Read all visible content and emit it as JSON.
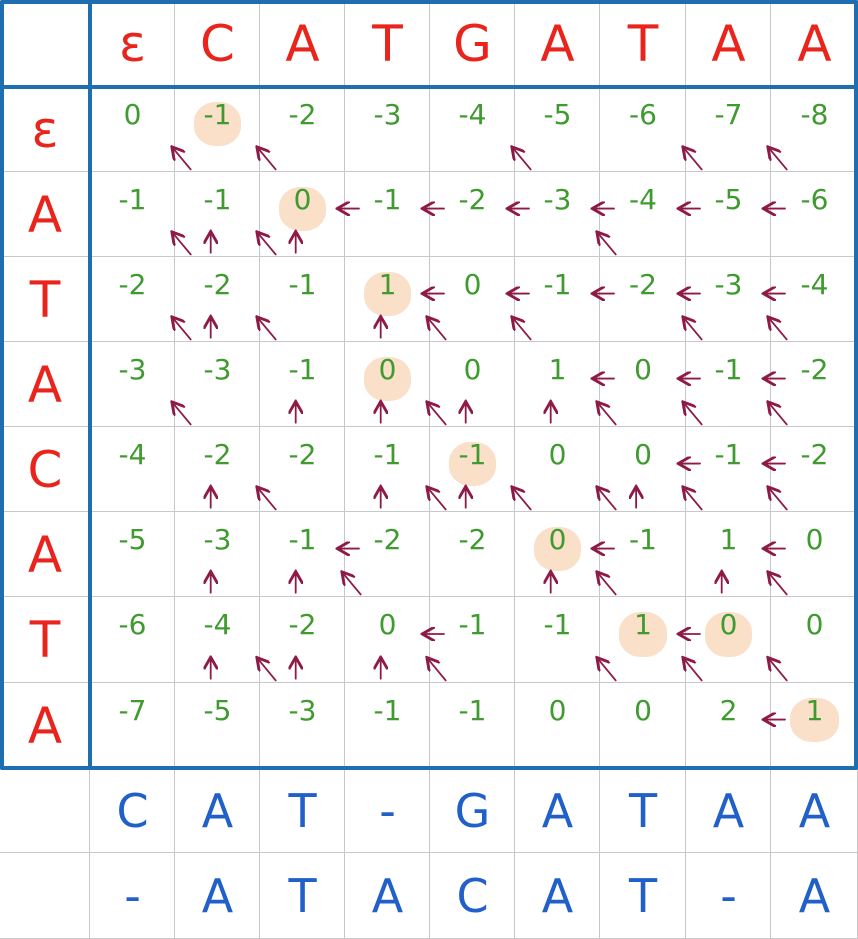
{
  "header_row": [
    "ε",
    "C",
    "A",
    "T",
    "G",
    "A",
    "T",
    "A",
    "A"
  ],
  "header_col": [
    "ε",
    "A",
    "T",
    "A",
    "C",
    "A",
    "T",
    "A"
  ],
  "matrix": [
    [
      "0",
      "-1",
      "-2",
      "-3",
      "-4",
      "-5",
      "-6",
      "-7",
      "-8"
    ],
    [
      "-1",
      "-1",
      "0",
      "-1",
      "-2",
      "-3",
      "-4",
      "-5",
      "-6"
    ],
    [
      "-2",
      "-2",
      "-1",
      "1",
      "0",
      "-1",
      "-2",
      "-3",
      "-4"
    ],
    [
      "-3",
      "-3",
      "-1",
      "0",
      "0",
      "1",
      "0",
      "-1",
      "-2"
    ],
    [
      "-4",
      "-2",
      "-2",
      "-1",
      "-1",
      "0",
      "0",
      "-1",
      "-2"
    ],
    [
      "-5",
      "-3",
      "-1",
      "-2",
      "-2",
      "0",
      "-1",
      "1",
      "0"
    ],
    [
      "-6",
      "-4",
      "-2",
      "0",
      "-1",
      "-1",
      "1",
      "0",
      "0"
    ],
    [
      "-7",
      "-5",
      "-3",
      "-1",
      "-1",
      "0",
      "0",
      "2",
      "1"
    ]
  ],
  "highlighted": [
    [
      0,
      1
    ],
    [
      1,
      2
    ],
    [
      2,
      3
    ],
    [
      3,
      3
    ],
    [
      4,
      4
    ],
    [
      5,
      5
    ],
    [
      6,
      6
    ],
    [
      6,
      7
    ],
    [
      7,
      8
    ]
  ],
  "arrows": [
    [
      0,
      1,
      "d"
    ],
    [
      0,
      2,
      "d"
    ],
    [
      0,
      5,
      "d"
    ],
    [
      0,
      7,
      "d"
    ],
    [
      0,
      8,
      "d"
    ],
    [
      1,
      1,
      "d"
    ],
    [
      1,
      1,
      "u"
    ],
    [
      1,
      2,
      "u"
    ],
    [
      1,
      2,
      "d"
    ],
    [
      1,
      3,
      "l"
    ],
    [
      1,
      4,
      "l"
    ],
    [
      1,
      5,
      "l"
    ],
    [
      1,
      6,
      "l"
    ],
    [
      1,
      6,
      "d"
    ],
    [
      1,
      7,
      "l"
    ],
    [
      1,
      8,
      "l"
    ],
    [
      2,
      1,
      "d"
    ],
    [
      2,
      1,
      "u"
    ],
    [
      2,
      2,
      "d"
    ],
    [
      2,
      3,
      "u"
    ],
    [
      2,
      4,
      "l"
    ],
    [
      2,
      4,
      "d"
    ],
    [
      2,
      5,
      "l"
    ],
    [
      2,
      5,
      "d"
    ],
    [
      2,
      6,
      "l"
    ],
    [
      2,
      7,
      "l"
    ],
    [
      2,
      7,
      "d"
    ],
    [
      2,
      8,
      "l"
    ],
    [
      2,
      8,
      "d"
    ],
    [
      3,
      1,
      "d"
    ],
    [
      3,
      2,
      "u"
    ],
    [
      3,
      3,
      "u"
    ],
    [
      3,
      4,
      "d"
    ],
    [
      3,
      4,
      "u"
    ],
    [
      3,
      5,
      "u"
    ],
    [
      3,
      6,
      "l"
    ],
    [
      3,
      6,
      "d"
    ],
    [
      3,
      7,
      "l"
    ],
    [
      3,
      7,
      "d"
    ],
    [
      3,
      8,
      "l"
    ],
    [
      3,
      8,
      "d"
    ],
    [
      4,
      1,
      "u"
    ],
    [
      4,
      2,
      "d"
    ],
    [
      4,
      3,
      "u"
    ],
    [
      4,
      4,
      "d"
    ],
    [
      4,
      4,
      "u"
    ],
    [
      4,
      5,
      "d"
    ],
    [
      4,
      6,
      "d"
    ],
    [
      4,
      6,
      "u"
    ],
    [
      4,
      7,
      "l"
    ],
    [
      4,
      7,
      "d"
    ],
    [
      4,
      8,
      "l"
    ],
    [
      4,
      8,
      "d"
    ],
    [
      5,
      1,
      "u"
    ],
    [
      5,
      2,
      "u"
    ],
    [
      5,
      3,
      "l"
    ],
    [
      5,
      3,
      "d"
    ],
    [
      5,
      5,
      "u"
    ],
    [
      5,
      6,
      "l"
    ],
    [
      5,
      6,
      "d"
    ],
    [
      5,
      7,
      "u"
    ],
    [
      5,
      8,
      "l"
    ],
    [
      5,
      8,
      "d"
    ],
    [
      6,
      1,
      "u"
    ],
    [
      6,
      2,
      "d"
    ],
    [
      6,
      2,
      "u"
    ],
    [
      6,
      3,
      "u"
    ],
    [
      6,
      4,
      "l"
    ],
    [
      6,
      4,
      "d"
    ],
    [
      6,
      6,
      "d"
    ],
    [
      6,
      7,
      "l"
    ],
    [
      6,
      7,
      "d"
    ],
    [
      6,
      8,
      "d"
    ],
    [
      7,
      8,
      "l"
    ]
  ],
  "alignment_top": [
    "C",
    "A",
    "T",
    "-",
    "G",
    "A",
    "T",
    "A",
    "A"
  ],
  "alignment_bottom": [
    "-",
    "A",
    "T",
    "A",
    "C",
    "A",
    "T",
    "-",
    "A"
  ],
  "colors": {
    "header": "#e8241c",
    "values": "#3f9a2f",
    "arrows": "#8e1a48",
    "alignment": "#2160c8",
    "frame": "#1f6fb0",
    "highlight": "#f9d9bf"
  }
}
